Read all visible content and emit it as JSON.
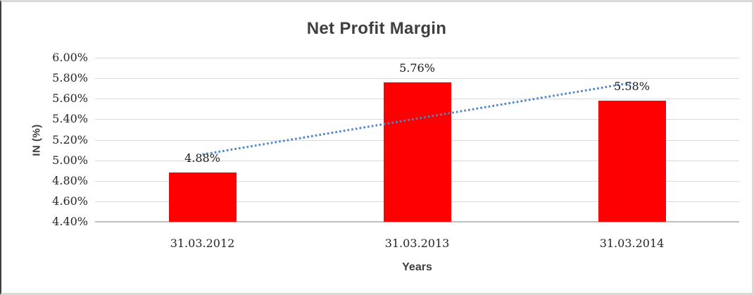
{
  "chart_data": {
    "type": "bar",
    "title": "Net Profit Margin",
    "xlabel": "Years",
    "ylabel": "IN (%)",
    "categories": [
      "31.03.2012",
      "31.03.2013",
      "31.03.2014"
    ],
    "values": [
      4.88,
      5.76,
      5.58
    ],
    "data_labels": [
      "4.88%",
      "5.76%",
      "5.58%"
    ],
    "ylim": [
      4.4,
      6.0
    ],
    "yticks": [
      {
        "value": 6.0,
        "label": "6.00%"
      },
      {
        "value": 5.8,
        "label": "5.80%"
      },
      {
        "value": 5.6,
        "label": "5.60%"
      },
      {
        "value": 5.4,
        "label": "5.40%"
      },
      {
        "value": 5.2,
        "label": "5.20%"
      },
      {
        "value": 5.0,
        "label": "5.00%"
      },
      {
        "value": 4.8,
        "label": "4.80%"
      },
      {
        "value": 4.6,
        "label": "4.60%"
      },
      {
        "value": 4.4,
        "label": "4.40%"
      }
    ],
    "grid": true,
    "legend": "none",
    "bar_color": "#ff0000",
    "gridline_color": "#d9d9d9",
    "axis_line_color": "#bfbfbf",
    "trendline": {
      "type": "linear",
      "style": "dotted",
      "color": "#4a86c8",
      "start_value": 5.0567,
      "end_value": 5.7567
    }
  }
}
